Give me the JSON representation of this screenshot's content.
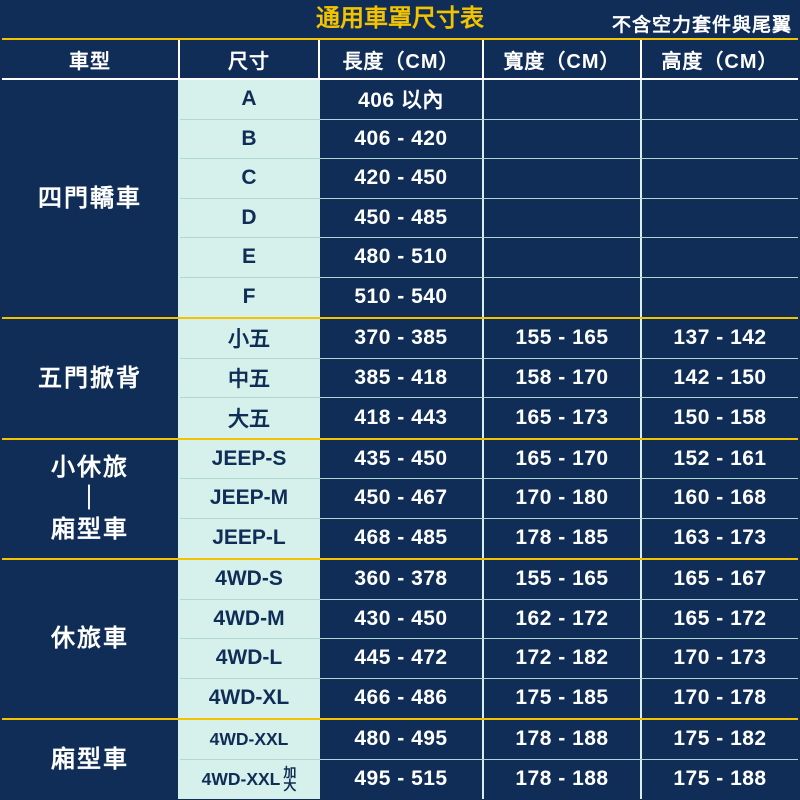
{
  "title": "通用車罩尺寸表",
  "subtitle": "不含空力套件與尾翼",
  "columns": {
    "type": "車型",
    "size": "尺寸",
    "length": "長度（CM）",
    "width": "寬度（CM）",
    "height": "高度（CM）"
  },
  "column_widths": {
    "type": 178,
    "size": 140,
    "length": 164,
    "width": 158,
    "height": 156
  },
  "row_height": 39.5,
  "colors": {
    "bg_dark": "#0f2d56",
    "bg_mint": "#d6f1eb",
    "accent_yellow": "#f3c300",
    "text_light": "#ffffff",
    "grid_mint": "#b0d8d0"
  },
  "fonts": {
    "title_size": 24,
    "header_size": 20,
    "data_size": 21,
    "group_label_size": 24,
    "size_small": 17.5,
    "weight": 700
  },
  "groups": [
    {
      "label": "四門轎車",
      "rows": [
        {
          "size": "A",
          "length": "406 以內",
          "width": "",
          "height": ""
        },
        {
          "size": "B",
          "length": "406 - 420",
          "width": "",
          "height": ""
        },
        {
          "size": "C",
          "length": "420 - 450",
          "width": "",
          "height": ""
        },
        {
          "size": "D",
          "length": "450 - 485",
          "width": "",
          "height": ""
        },
        {
          "size": "E",
          "length": "480 - 510",
          "width": "",
          "height": ""
        },
        {
          "size": "F",
          "length": "510 - 540",
          "width": "",
          "height": ""
        }
      ]
    },
    {
      "label": "五門掀背",
      "rows": [
        {
          "size": "小五",
          "length": "370 - 385",
          "width": "155 - 165",
          "height": "137 - 142"
        },
        {
          "size": "中五",
          "length": "385 - 418",
          "width": "158 - 170",
          "height": "142 - 150"
        },
        {
          "size": "大五",
          "length": "418 - 443",
          "width": "165 - 173",
          "height": "150 - 158"
        }
      ]
    },
    {
      "label": "小休旅\n｜\n廂型車",
      "vertical": true,
      "rows": [
        {
          "size": "JEEP-S",
          "length": "435 - 450",
          "width": "165 - 170",
          "height": "152 - 161"
        },
        {
          "size": "JEEP-M",
          "length": "450 - 467",
          "width": "170 - 180",
          "height": "160 - 168"
        },
        {
          "size": "JEEP-L",
          "length": "468 - 485",
          "width": "178 - 185",
          "height": "163 - 173"
        }
      ]
    },
    {
      "label": "休旅車",
      "rows": [
        {
          "size": "4WD-S",
          "length": "360 - 378",
          "width": "155 - 165",
          "height": "165 - 167"
        },
        {
          "size": "4WD-M",
          "length": "430 - 450",
          "width": "162 - 172",
          "height": "165 - 172"
        },
        {
          "size": "4WD-L",
          "length": "445 - 472",
          "width": "172 - 182",
          "height": "170 - 173"
        },
        {
          "size": "4WD-XL",
          "length": "466 - 486",
          "width": "175 - 185",
          "height": "170 - 178"
        }
      ]
    },
    {
      "label": "廂型車",
      "rows": [
        {
          "size": "4WD-XXL",
          "small": true,
          "length": "480 - 495",
          "width": "178 - 188",
          "height": "175 - 182"
        },
        {
          "size": "4WD-XXL",
          "extra": "加\n大",
          "small": true,
          "length": "495 - 515",
          "width": "178 - 188",
          "height": "175 - 188"
        }
      ]
    }
  ]
}
